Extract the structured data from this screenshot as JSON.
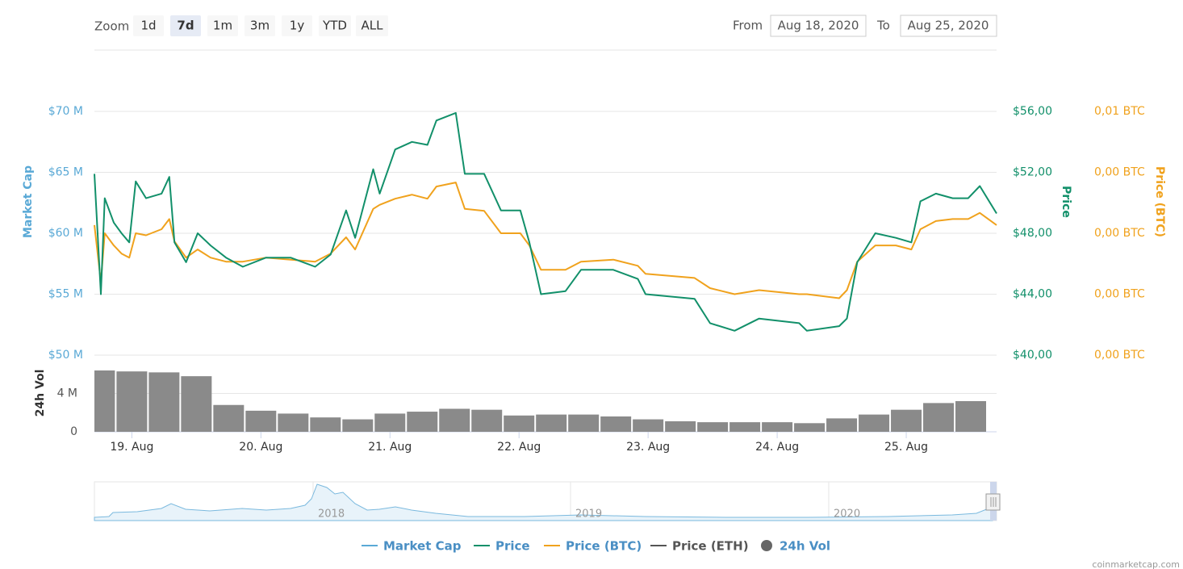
{
  "toolbar": {
    "zoom_label": "Zoom",
    "zoom_buttons": [
      "1d",
      "7d",
      "1m",
      "3m",
      "1y",
      "YTD",
      "ALL"
    ],
    "selected": "7d",
    "from_label": "From",
    "from_value": "Aug 18, 2020",
    "to_label": "To",
    "to_value": "Aug 25, 2020"
  },
  "chart_data": {
    "type": "line",
    "y_title": "Market Cap",
    "y2_title": "Price",
    "y3_title": "Price (BTC)",
    "ylim": [
      50000000,
      70000000
    ],
    "yticks": [
      {
        "value": 50000000,
        "label": "$50 M"
      },
      {
        "value": 55000000,
        "label": "$55 M"
      },
      {
        "value": 60000000,
        "label": "$60 M"
      },
      {
        "value": 65000000,
        "label": "$65 M"
      },
      {
        "value": 70000000,
        "label": "$70 M"
      }
    ],
    "y2lim": [
      40,
      56
    ],
    "y2ticks": [
      {
        "value": 40,
        "label": "$40,00"
      },
      {
        "value": 44,
        "label": "$44,00"
      },
      {
        "value": 48,
        "label": "$48,00"
      },
      {
        "value": 52,
        "label": "$52,00"
      },
      {
        "value": 56,
        "label": "$56,00"
      }
    ],
    "y3lim": [
      0.0038,
      0.005
    ],
    "y3ticks": [
      {
        "value": 0.0038,
        "label": "0,00 BTC"
      },
      {
        "value": 0.0041,
        "label": "0,00 BTC"
      },
      {
        "value": 0.0044,
        "label": "0,00 BTC"
      },
      {
        "value": 0.0047,
        "label": "0,00 BTC"
      },
      {
        "value": 0.005,
        "label": "0,01 BTC"
      }
    ],
    "xlim": [
      0.71,
      7.7
    ],
    "xticks": [
      {
        "value": 1,
        "label": "19. Aug"
      },
      {
        "value": 2,
        "label": "20. Aug"
      },
      {
        "value": 3,
        "label": "21. Aug"
      },
      {
        "value": 4,
        "label": "22. Aug"
      },
      {
        "value": 5,
        "label": "23. Aug"
      },
      {
        "value": 6,
        "label": "24. Aug"
      },
      {
        "value": 7,
        "label": "25. Aug"
      }
    ],
    "grid": true,
    "x": [
      0.71,
      0.76,
      0.79,
      0.86,
      0.92,
      0.98,
      1.03,
      1.11,
      1.23,
      1.29,
      1.33,
      1.42,
      1.51,
      1.61,
      1.73,
      1.86,
      2.04,
      2.23,
      2.42,
      2.54,
      2.66,
      2.73,
      2.87,
      2.92,
      3.04,
      3.17,
      3.29,
      3.36,
      3.51,
      3.58,
      3.73,
      3.86,
      4.01,
      4.08,
      4.17,
      4.36,
      4.48,
      4.73,
      4.92,
      4.98,
      5.36,
      5.48,
      5.67,
      5.86,
      6.17,
      6.23,
      6.48,
      6.54,
      6.62,
      6.76,
      6.92,
      7.04,
      7.11,
      7.23,
      7.36,
      7.48,
      7.57,
      7.7
    ],
    "series": [
      {
        "name": "Price (BTC)",
        "color": "#f0a21d",
        "axis": "y3",
        "values": [
          0.00444,
          0.00416,
          0.0044,
          0.00434,
          0.0043,
          0.00428,
          0.0044,
          0.00439,
          0.00442,
          0.00447,
          0.00436,
          0.00428,
          0.00432,
          0.00428,
          0.00426,
          0.00426,
          0.00428,
          0.00427,
          0.00426,
          0.0043,
          0.00438,
          0.00432,
          0.00452,
          0.00454,
          0.00457,
          0.00459,
          0.00457,
          0.00463,
          0.00465,
          0.00452,
          0.00451,
          0.0044,
          0.0044,
          0.00434,
          0.00422,
          0.00422,
          0.00426,
          0.00427,
          0.00424,
          0.0042,
          0.00418,
          0.00413,
          0.0041,
          0.00412,
          0.0041,
          0.0041,
          0.00408,
          0.00412,
          0.00426,
          0.00434,
          0.00434,
          0.00432,
          0.00442,
          0.00446,
          0.00447,
          0.00447,
          0.0045,
          0.00444
        ]
      },
      {
        "name": "Price",
        "color": "#12906a",
        "axis": "y2",
        "values": [
          51.9,
          44.0,
          50.3,
          48.7,
          48.0,
          47.4,
          51.4,
          50.3,
          50.6,
          51.7,
          47.4,
          46.1,
          48.0,
          47.2,
          46.4,
          45.8,
          46.4,
          46.4,
          45.8,
          46.6,
          49.5,
          47.7,
          52.2,
          50.6,
          53.5,
          54.0,
          53.8,
          55.4,
          55.9,
          51.9,
          51.9,
          49.5,
          49.5,
          47.4,
          44.0,
          44.2,
          45.6,
          45.6,
          45.0,
          44.0,
          43.7,
          42.1,
          41.6,
          42.4,
          42.1,
          41.6,
          41.9,
          42.4,
          46.1,
          48.0,
          47.7,
          47.4,
          50.1,
          50.6,
          50.3,
          50.3,
          51.1,
          49.3
        ]
      }
    ],
    "volume": {
      "title": "24h Vol",
      "color": "#8a8a8a",
      "ylim": [
        0,
        8000000
      ],
      "yticks": [
        0,
        {
          "value": 4000000,
          "label": "4 M"
        }
      ],
      "x": [
        0.75,
        1.0,
        1.25,
        1.5,
        1.75,
        2.0,
        2.25,
        2.5,
        2.75,
        3.0,
        3.25,
        3.5,
        3.75,
        4.0,
        4.25,
        4.5,
        4.75,
        5.0,
        5.25,
        5.5,
        5.75,
        6.0,
        6.25,
        6.5,
        6.75,
        7.0,
        7.25,
        7.5
      ],
      "values": [
        6400000,
        6300000,
        6200000,
        5800000,
        2800000,
        2200000,
        1900000,
        1500000,
        1300000,
        1900000,
        2100000,
        2400000,
        2300000,
        1700000,
        1800000,
        1800000,
        1600000,
        1300000,
        1100000,
        1000000,
        1000000,
        1000000,
        900000,
        1400000,
        1800000,
        2300000,
        3000000,
        3200000
      ]
    },
    "navigator_labels": [
      "2018",
      "2019",
      "2020"
    ],
    "legend": [
      {
        "name": "Market Cap",
        "color": "#5aa9d6"
      },
      {
        "name": "Price",
        "color": "#12906a"
      },
      {
        "name": "Price (BTC)",
        "color": "#f0a21d"
      },
      {
        "name": "Price (ETH)",
        "color": "#555555"
      },
      {
        "name": "24h Vol",
        "color": "#666666"
      }
    ]
  },
  "watermark": "coinmarketcap.com"
}
